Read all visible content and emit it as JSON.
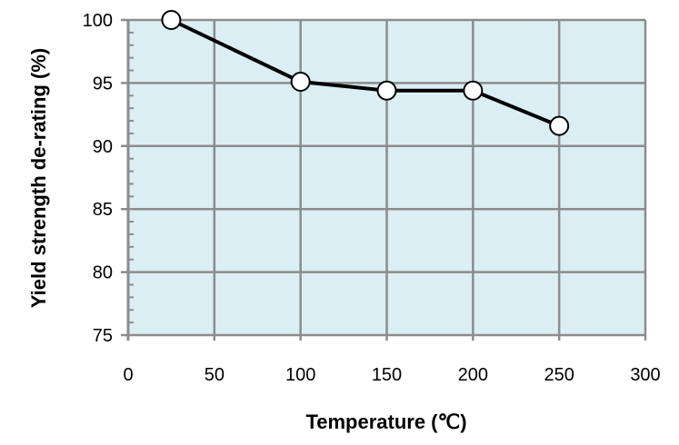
{
  "chart_data": {
    "type": "line",
    "title": "",
    "xlabel": "Temperature (℃)",
    "ylabel": "Yield strength de-rating (%)",
    "xlim": [
      0,
      300
    ],
    "ylim": [
      75,
      100
    ],
    "xticks": [
      0,
      50,
      100,
      150,
      200,
      250,
      300
    ],
    "yticks": [
      75,
      80,
      85,
      90,
      95,
      100
    ],
    "grid": true,
    "plot_background": "#dbeef4",
    "series": [
      {
        "x": [
          25,
          100,
          150,
          200,
          250
        ],
        "y": [
          100,
          95.1,
          94.4,
          94.4,
          91.6
        ],
        "color": "#000000",
        "marker": "open-circle"
      }
    ]
  }
}
